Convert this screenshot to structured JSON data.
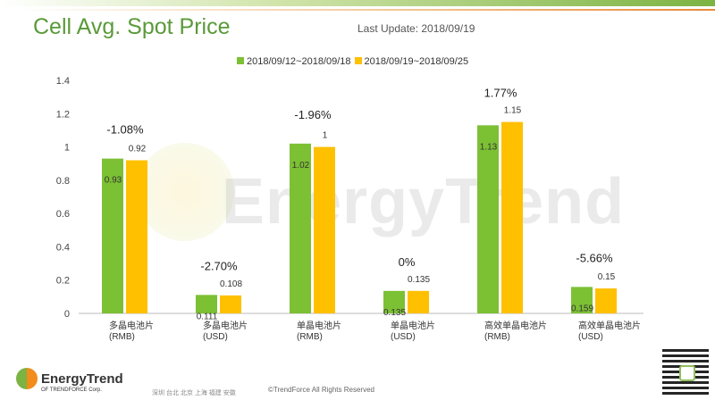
{
  "header": {
    "title": "Cell Avg. Spot Price",
    "last_update": "Last Update: 2018/09/19"
  },
  "watermark": "EnergyTrend",
  "footer": {
    "logo": "EnergyTrend",
    "logo_sub": "OF TRENDFORCE Corp.",
    "cities": "深圳 台北 北京 上海 福建 安徽",
    "copyright": "©TrendForce All Rights Reserved"
  },
  "colors": {
    "series1": "#7cc034",
    "series2": "#ffc000",
    "title": "#5a9a3a"
  },
  "chart_data": {
    "type": "bar",
    "categories": [
      [
        "多晶电池片",
        "(RMB)"
      ],
      [
        "多晶电池片",
        "(USD)"
      ],
      [
        "单晶电池片",
        "(RMB)"
      ],
      [
        "单晶电池片",
        "(USD)"
      ],
      [
        "高效单晶电池片",
        "(RMB)"
      ],
      [
        "高效单晶电池片",
        "(USD)"
      ]
    ],
    "series": [
      {
        "name": "2018/09/12~2018/09/18",
        "values": [
          0.93,
          0.111,
          1.02,
          0.135,
          1.13,
          0.159
        ]
      },
      {
        "name": "2018/09/19~2018/09/25",
        "values": [
          0.92,
          0.108,
          1,
          0.135,
          1.15,
          0.15
        ]
      }
    ],
    "changes": [
      "-1.08%",
      "-2.70%",
      "-1.96%",
      "0%",
      "1.77%",
      "-5.66%"
    ],
    "ylim": [
      0,
      1.4
    ],
    "yticks": [
      0,
      0.2,
      0.4,
      0.6,
      0.8,
      1,
      1.2,
      1.4
    ],
    "ytick_labels": [
      "0",
      "0.2",
      "0.4",
      "0.6",
      "0.8",
      "1",
      "1.2",
      "1.4"
    ],
    "grid": false,
    "legend": "top-center"
  }
}
